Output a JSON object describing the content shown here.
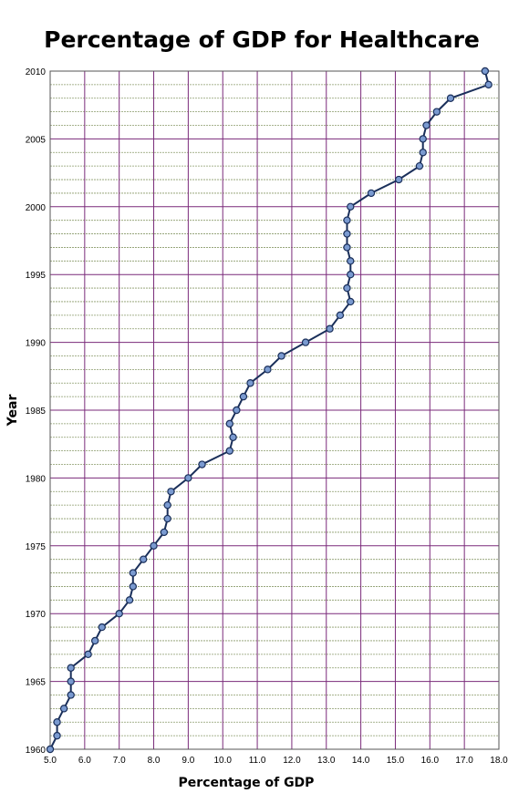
{
  "chart_data": {
    "type": "line",
    "title": "Percentage of GDP for Healthcare",
    "xlabel": "Percentage of GDP",
    "ylabel": "Year",
    "xlim": [
      5.0,
      18.0
    ],
    "ylim": [
      1960,
      2010
    ],
    "x_ticks": [
      "5.0",
      "6.0",
      "7.0",
      "8.0",
      "9.0",
      "10.0",
      "11.0",
      "12.0",
      "13.0",
      "14.0",
      "15.0",
      "16.0",
      "17.0",
      "18.0"
    ],
    "y_ticks": [
      "1960",
      "1965",
      "1970",
      "1975",
      "1980",
      "1985",
      "1990",
      "1995",
      "2000",
      "2005",
      "2010"
    ],
    "grid": true,
    "colors": {
      "line": "#1a2f5a",
      "marker": "#7a9ad0",
      "major_grid": "#7a2a7a",
      "minor_grid": "#8a9a6a"
    },
    "series": [
      {
        "points": [
          [
            5.0,
            1960
          ],
          [
            5.2,
            1961
          ],
          [
            5.2,
            1962
          ],
          [
            5.4,
            1963
          ],
          [
            5.6,
            1964
          ],
          [
            5.6,
            1965
          ],
          [
            5.6,
            1966
          ],
          [
            6.1,
            1967
          ],
          [
            6.3,
            1968
          ],
          [
            6.5,
            1969
          ],
          [
            7.0,
            1970
          ],
          [
            7.3,
            1971
          ],
          [
            7.4,
            1972
          ],
          [
            7.4,
            1973
          ],
          [
            7.7,
            1974
          ],
          [
            8.0,
            1975
          ],
          [
            8.3,
            1976
          ],
          [
            8.4,
            1977
          ],
          [
            8.4,
            1978
          ],
          [
            8.5,
            1979
          ],
          [
            9.0,
            1980
          ],
          [
            9.4,
            1981
          ],
          [
            10.2,
            1982
          ],
          [
            10.3,
            1983
          ],
          [
            10.2,
            1984
          ],
          [
            10.4,
            1985
          ],
          [
            10.6,
            1986
          ],
          [
            10.8,
            1987
          ],
          [
            11.3,
            1988
          ],
          [
            11.7,
            1989
          ],
          [
            12.4,
            1990
          ],
          [
            13.1,
            1991
          ],
          [
            13.4,
            1992
          ],
          [
            13.7,
            1993
          ],
          [
            13.6,
            1994
          ],
          [
            13.7,
            1995
          ],
          [
            13.7,
            1996
          ],
          [
            13.6,
            1997
          ],
          [
            13.6,
            1998
          ],
          [
            13.6,
            1999
          ],
          [
            13.7,
            2000
          ],
          [
            14.3,
            2001
          ],
          [
            15.1,
            2002
          ],
          [
            15.7,
            2003
          ],
          [
            15.8,
            2004
          ],
          [
            15.8,
            2005
          ],
          [
            15.9,
            2006
          ],
          [
            16.2,
            2007
          ],
          [
            16.6,
            2008
          ],
          [
            17.7,
            2009
          ],
          [
            17.6,
            2010
          ]
        ]
      }
    ]
  }
}
